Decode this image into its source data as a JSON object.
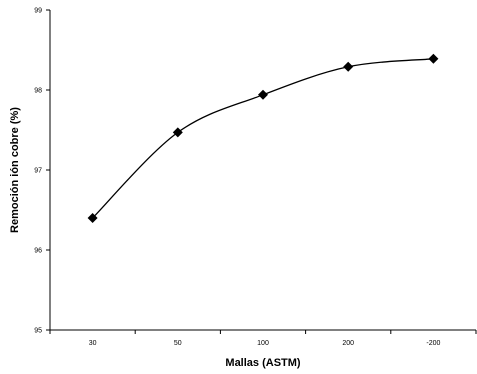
{
  "chart_data": {
    "type": "line",
    "categories": [
      "30",
      "50",
      "100",
      "200",
      "-200"
    ],
    "values": [
      96.4,
      97.47,
      97.94,
      98.29,
      98.39
    ],
    "xlabel": "Mallas (ASTM)",
    "ylabel": "Remoción ión cobre (%)",
    "ylim": [
      95,
      99
    ],
    "yticks": [
      "95",
      "96",
      "97",
      "98",
      "99"
    ],
    "grid": false,
    "legend": "none",
    "line_color": "#000000",
    "marker": "diamond"
  }
}
